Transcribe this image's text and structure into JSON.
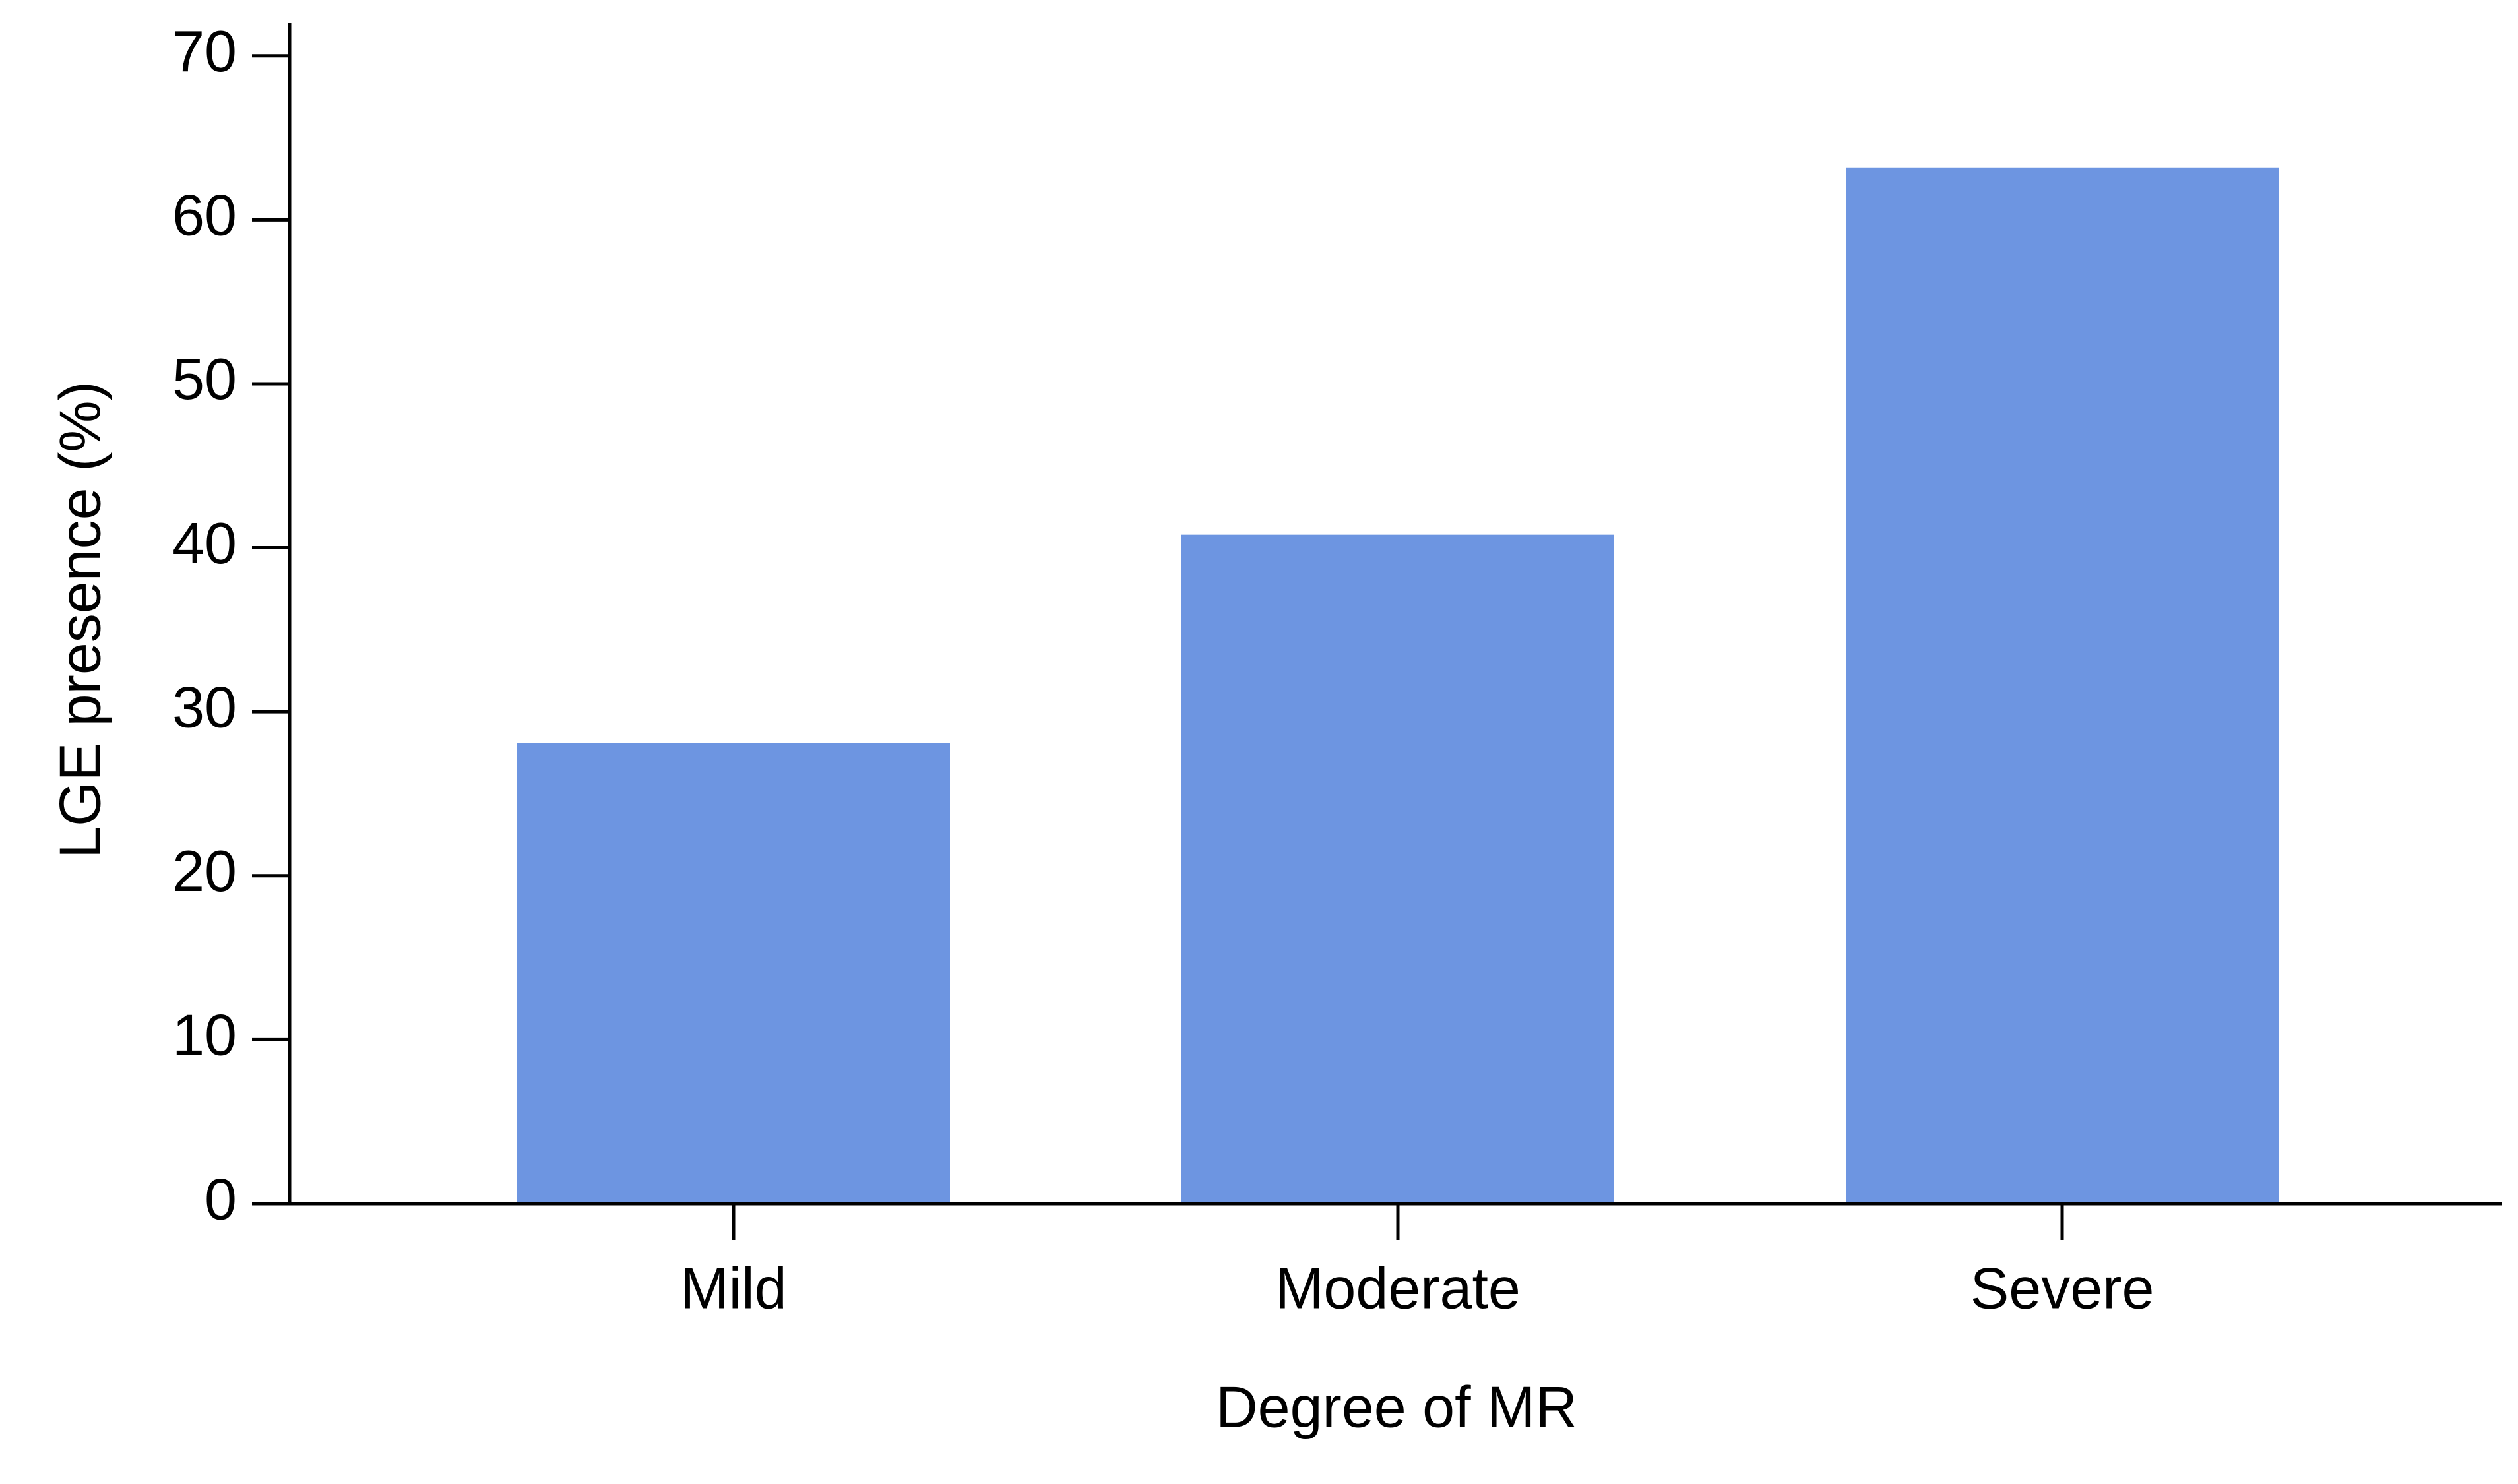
{
  "chart_data": {
    "type": "bar",
    "x_label": "Degree of MR",
    "y_label": "LGE presence (%)",
    "categories": [
      "Mild",
      "Moderate",
      "Severe"
    ],
    "values": [
      28.1,
      40.8,
      63.2
    ],
    "color": "#6d95e1",
    "ylim": [
      0,
      72
    ],
    "yticks": [
      0,
      10,
      20,
      30,
      40,
      50,
      60,
      70
    ],
    "grid": false
  }
}
